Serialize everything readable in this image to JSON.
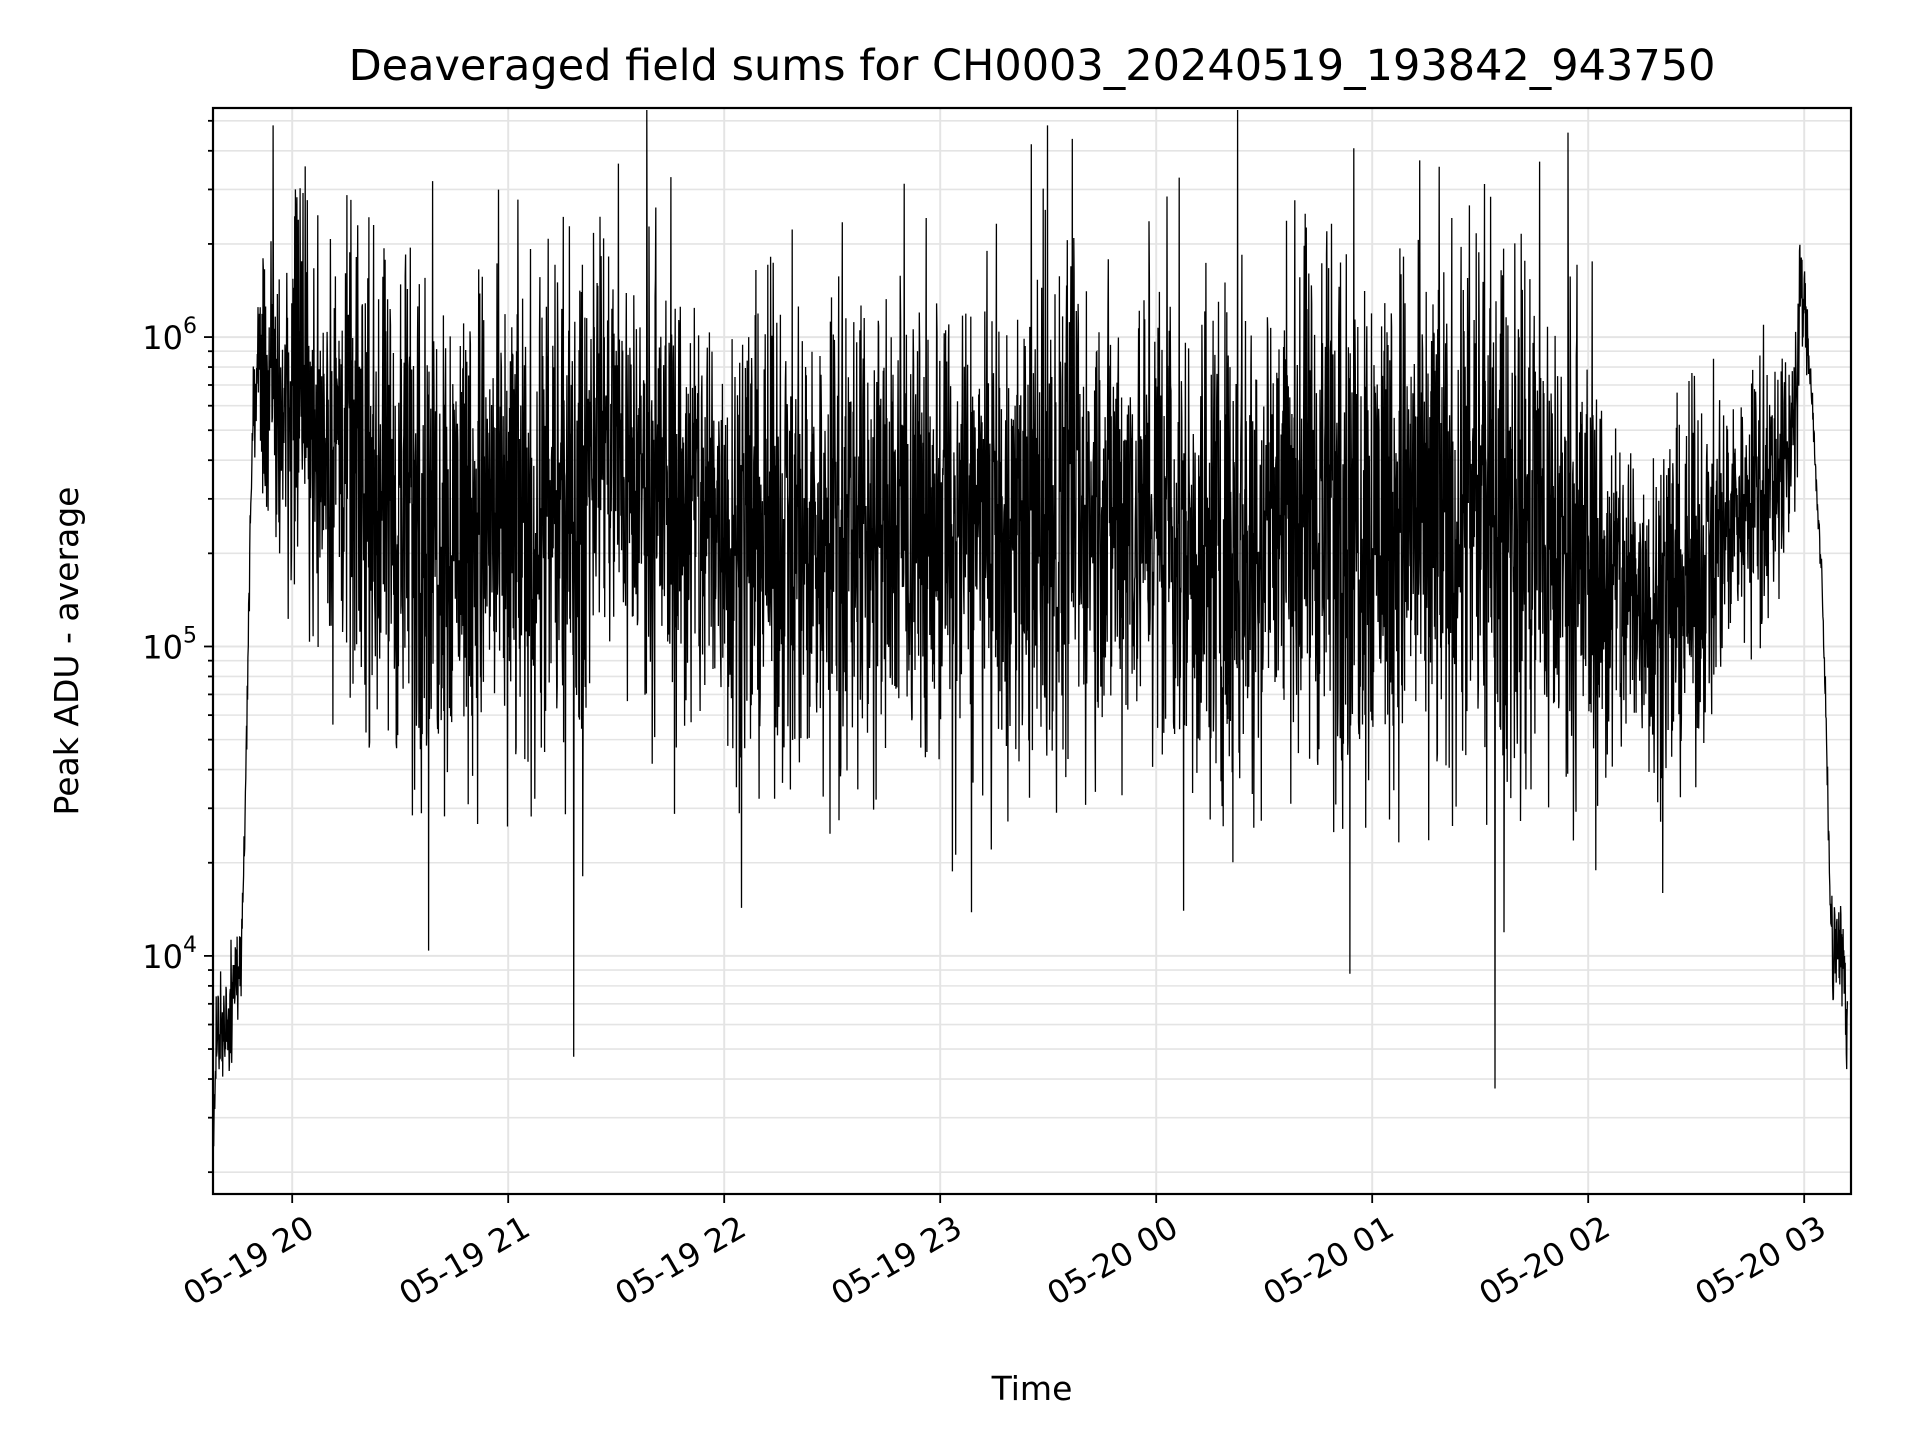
{
  "chart_data": {
    "type": "line",
    "title": "Deaveraged field sums for CH0003_20240519_193842_943750",
    "xlabel": "Time",
    "ylabel": "Peak ADU - average",
    "yscale": "log",
    "xlim": [
      "2024-05-19T19:38:00",
      "2024-05-20T03:13:00"
    ],
    "ylim": [
      1700,
      5500000
    ],
    "grid": true,
    "colors": {
      "line": "#000000",
      "grid": "#e4e4e4",
      "background": "#ffffff"
    },
    "x_ticks": [
      {
        "value": "2024-05-19T20:00",
        "label": "05-19 20"
      },
      {
        "value": "2024-05-19T21:00",
        "label": "05-19 21"
      },
      {
        "value": "2024-05-19T22:00",
        "label": "05-19 22"
      },
      {
        "value": "2024-05-19T23:00",
        "label": "05-19 23"
      },
      {
        "value": "2024-05-20T00:00",
        "label": "05-20 00"
      },
      {
        "value": "2024-05-20T01:00",
        "label": "05-20 01"
      },
      {
        "value": "2024-05-20T02:00",
        "label": "05-20 02"
      },
      {
        "value": "2024-05-20T03:00",
        "label": "05-20 03"
      }
    ],
    "y_ticks": [
      {
        "value": 10000,
        "base": "10",
        "exp": "4"
      },
      {
        "value": 100000,
        "base": "10",
        "exp": "5"
      },
      {
        "value": 1000000,
        "base": "10",
        "exp": "6"
      }
    ],
    "series": [
      {
        "x": [
          "2024-05-19T19:38",
          "2024-05-19T19:39",
          "2024-05-19T19:40",
          "2024-05-19T19:41",
          "2024-05-19T19:42",
          "2024-05-19T19:43",
          "2024-05-19T19:44",
          "2024-05-19T19:45",
          "2024-05-19T19:46",
          "2024-05-19T19:47",
          "2024-05-19T19:48",
          "2024-05-19T19:49",
          "2024-05-19T19:50",
          "2024-05-19T19:51",
          "2024-05-19T19:52",
          "2024-05-19T19:53",
          "2024-05-19T19:54",
          "2024-05-19T19:56",
          "2024-05-19T19:58",
          "2024-05-19T20:00",
          "2024-05-19T20:02",
          "2024-05-19T20:04",
          "2024-05-19T20:06",
          "2024-05-19T20:10",
          "2024-05-19T20:15",
          "2024-05-19T20:20",
          "2024-05-19T20:25",
          "2024-05-19T20:30",
          "2024-05-19T20:35",
          "2024-05-19T20:40",
          "2024-05-19T20:45",
          "2024-05-19T20:50",
          "2024-05-19T21:00",
          "2024-05-19T21:10",
          "2024-05-19T21:20",
          "2024-05-19T21:25",
          "2024-05-19T21:30",
          "2024-05-19T21:40",
          "2024-05-19T21:50",
          "2024-05-19T22:00",
          "2024-05-19T22:15",
          "2024-05-19T22:30",
          "2024-05-19T22:45",
          "2024-05-19T23:00",
          "2024-05-19T23:15",
          "2024-05-19T23:30",
          "2024-05-19T23:45",
          "2024-05-20T00:00",
          "2024-05-20T00:10",
          "2024-05-20T00:20",
          "2024-05-20T00:30",
          "2024-05-20T00:45",
          "2024-05-20T01:00",
          "2024-05-20T01:10",
          "2024-05-20T01:20",
          "2024-05-20T01:30",
          "2024-05-20T01:45",
          "2024-05-20T02:00",
          "2024-05-20T02:05",
          "2024-05-20T02:10",
          "2024-05-20T02:15",
          "2024-05-20T02:20",
          "2024-05-20T02:25",
          "2024-05-20T02:30",
          "2024-05-20T02:35",
          "2024-05-20T02:40",
          "2024-05-20T02:45",
          "2024-05-20T02:50",
          "2024-05-20T02:55",
          "2024-05-20T02:58",
          "2024-05-20T02:59",
          "2024-05-20T03:00",
          "2024-05-20T03:01",
          "2024-05-20T03:02",
          "2024-05-20T03:03",
          "2024-05-20T03:04",
          "2024-05-20T03:05",
          "2024-05-20T03:06",
          "2024-05-20T03:07",
          "2024-05-20T03:08",
          "2024-05-20T03:09",
          "2024-05-20T03:10",
          "2024-05-20T03:11",
          "2024-05-20T03:12"
        ],
        "center": [
          2300,
          5500,
          6000,
          6500,
          6500,
          7000,
          8500,
          9500,
          10000,
          30000,
          150000,
          500000,
          700000,
          750000,
          750000,
          700000,
          650000,
          600000,
          600000,
          550000,
          1000000,
          550000,
          500000,
          480000,
          420000,
          330000,
          280000,
          270000,
          270000,
          260000,
          260000,
          260000,
          250000,
          250000,
          260000,
          600000,
          400000,
          320000,
          280000,
          250000,
          230000,
          230000,
          240000,
          240000,
          240000,
          250000,
          280000,
          280000,
          220000,
          220000,
          250000,
          280000,
          280000,
          260000,
          270000,
          280000,
          250000,
          180000,
          150000,
          150000,
          140000,
          140000,
          150000,
          160000,
          210000,
          280000,
          300000,
          320000,
          400000,
          700000,
          1400000,
          1300000,
          900000,
          700000,
          400000,
          250000,
          150000,
          60000,
          20000,
          10000,
          10500,
          10000,
          10000,
          5000
        ],
        "spread": [
          0.1,
          0.15,
          0.15,
          0.15,
          0.15,
          0.15,
          0.15,
          0.15,
          0.1,
          0.1,
          0.05,
          0.1,
          0.2,
          0.3,
          0.35,
          0.4,
          0.45,
          0.5,
          0.5,
          0.5,
          0.55,
          0.55,
          0.55,
          0.55,
          0.6,
          0.65,
          0.65,
          0.7,
          0.7,
          0.7,
          0.7,
          0.7,
          0.7,
          0.7,
          0.7,
          0.5,
          0.6,
          0.65,
          0.65,
          0.65,
          0.65,
          0.65,
          0.65,
          0.65,
          0.65,
          0.65,
          0.65,
          0.65,
          0.7,
          0.75,
          0.75,
          0.75,
          0.75,
          0.75,
          0.75,
          0.75,
          0.75,
          0.65,
          0.55,
          0.5,
          0.5,
          0.5,
          0.5,
          0.5,
          0.4,
          0.35,
          0.35,
          0.35,
          0.3,
          0.25,
          0.2,
          0.15,
          0.1,
          0.05,
          0.05,
          0.05,
          0.05,
          0.05,
          0.1,
          0.15,
          0.15,
          0.15,
          0.15,
          0.1
        ]
      }
    ]
  }
}
